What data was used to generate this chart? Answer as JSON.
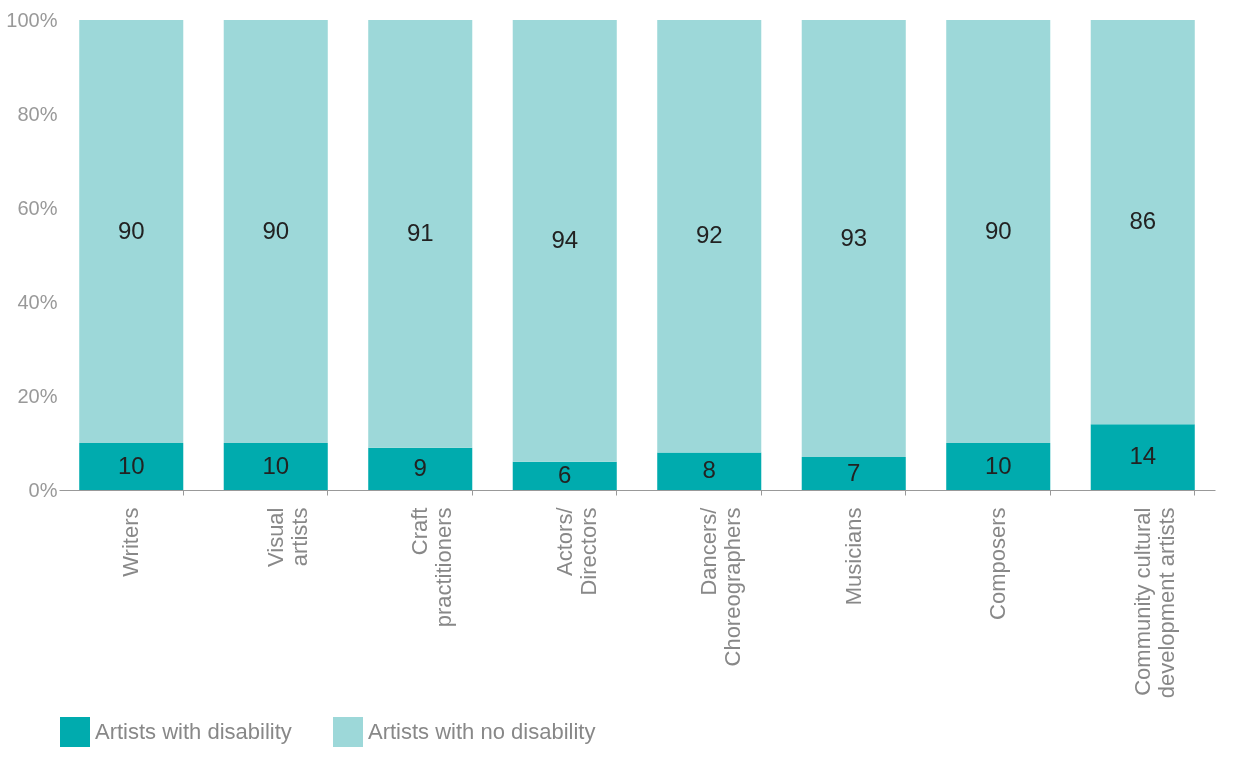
{
  "chart_data": {
    "type": "bar",
    "stacked": true,
    "data_labels": true,
    "legend": "bottom",
    "grid": false,
    "categories": [
      "Writers",
      "Visual\nartists",
      "Craft\npractitioners",
      "Actors/\nDirectors",
      "Dancers/\nChoreographers",
      "Musicians",
      "Composers",
      "Community cultural\ndevelopment artists"
    ],
    "series": [
      {
        "name": "Artists with disability",
        "color": "#00abae",
        "values": [
          10,
          10,
          9,
          6,
          8,
          7,
          10,
          14
        ]
      },
      {
        "name": "Artists with no disability",
        "color": "#9dd8d9",
        "values": [
          90,
          90,
          91,
          94,
          92,
          93,
          90,
          86
        ]
      }
    ],
    "ylim": [
      0,
      100
    ],
    "yticks": [
      {
        "value": 0,
        "label": "0%"
      },
      {
        "value": 20,
        "label": "20%"
      },
      {
        "value": 40,
        "label": "40%"
      },
      {
        "value": 60,
        "label": "60%"
      },
      {
        "value": 80,
        "label": "80%"
      },
      {
        "value": 100,
        "label": "100%"
      }
    ]
  }
}
